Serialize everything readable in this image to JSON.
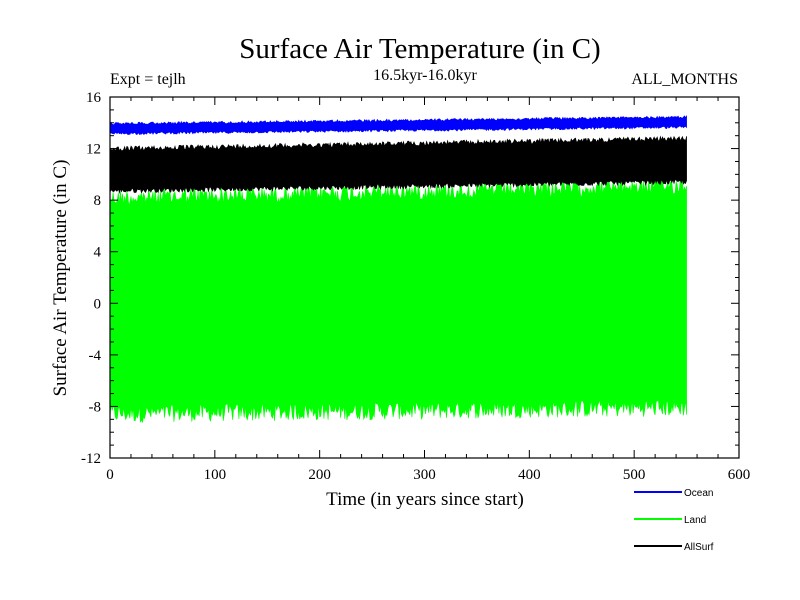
{
  "chart_data": {
    "type": "area",
    "title": "Surface Air Temperature (in C)",
    "subtitle": "16.5kyr-16.0kyr",
    "experiment": "Expt = tejlh",
    "months_label": "ALL_MONTHS",
    "xlabel": "Time (in years since start)",
    "ylabel": "Surface Air Temperature (in C)",
    "xlim": [
      0,
      600
    ],
    "ylim": [
      -12,
      16
    ],
    "x_ticks": [
      0,
      100,
      200,
      300,
      400,
      500,
      600
    ],
    "y_ticks": [
      -12,
      -8,
      -4,
      0,
      4,
      8,
      12,
      16
    ],
    "x_data_range": [
      0,
      550
    ],
    "grid": false,
    "legend_position": "bottom-right",
    "series": [
      {
        "name": "Ocean",
        "color": "#0000ff",
        "band_min_start": 13.1,
        "band_min_end": 13.6,
        "band_max_start": 14.0,
        "band_max_end": 14.5
      },
      {
        "name": "Land",
        "color": "#00ff00",
        "band_min_start": -9.0,
        "band_min_end": -8.5,
        "band_max_start": 8.6,
        "band_max_end": 9.6
      },
      {
        "name": "AllSurf",
        "color": "#000000",
        "band_min_start": 8.6,
        "band_min_end": 9.3,
        "band_max_start": 12.1,
        "band_max_end": 12.9
      }
    ]
  }
}
